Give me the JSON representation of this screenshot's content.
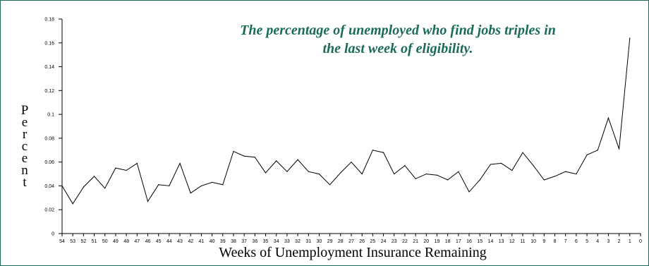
{
  "colors": {
    "frame": "#1a6b5a",
    "annotation": "#1a6b5a",
    "line": "#000000"
  },
  "annotation": {
    "line1": "The percentage of unemployed who find jobs triples in",
    "line2": "the last week of eligibility."
  },
  "chart_data": {
    "type": "line",
    "title": "",
    "xlabel": "Weeks of Unemployment Insurance Remaining",
    "ylabel": "Percent",
    "xlim": [
      54,
      0
    ],
    "x_reversed": true,
    "ylim": [
      0,
      0.18
    ],
    "yticks": [
      0,
      0.02,
      0.04,
      0.06,
      0.08,
      0.1,
      0.12,
      0.14,
      0.16,
      0.18
    ],
    "ytick_labels": [
      "0",
      "0.02",
      "0.04",
      "0.06",
      "0.08",
      "0.1",
      "0.12",
      "0.14",
      "0.16",
      "0.18"
    ],
    "xticks": [
      54,
      53,
      52,
      51,
      50,
      49,
      48,
      47,
      46,
      45,
      44,
      43,
      42,
      41,
      40,
      39,
      38,
      37,
      36,
      35,
      34,
      33,
      32,
      31,
      30,
      29,
      28,
      27,
      26,
      25,
      24,
      23,
      22,
      21,
      20,
      19,
      18,
      17,
      16,
      15,
      14,
      13,
      12,
      11,
      10,
      9,
      8,
      7,
      6,
      5,
      4,
      3,
      2,
      1,
      0
    ],
    "grid": false,
    "series": [
      {
        "x": [
          54,
          53,
          52,
          51,
          50,
          49,
          48,
          47,
          46,
          45,
          44,
          43,
          42,
          41,
          40,
          39,
          38,
          37,
          36,
          35,
          34,
          33,
          32,
          31,
          30,
          29,
          28,
          27,
          26,
          25,
          24,
          23,
          22,
          21,
          20,
          19,
          18,
          17,
          16,
          15,
          14,
          13,
          12,
          11,
          10,
          9,
          8,
          7,
          6,
          5,
          4,
          3,
          2,
          1
        ],
        "values": [
          0.04,
          0.025,
          0.039,
          0.048,
          0.038,
          0.055,
          0.053,
          0.059,
          0.027,
          0.041,
          0.04,
          0.059,
          0.034,
          0.04,
          0.043,
          0.041,
          0.069,
          0.065,
          0.064,
          0.051,
          0.061,
          0.052,
          0.062,
          0.052,
          0.05,
          0.041,
          0.051,
          0.06,
          0.05,
          0.07,
          0.068,
          0.05,
          0.057,
          0.046,
          0.05,
          0.049,
          0.045,
          0.052,
          0.035,
          0.045,
          0.058,
          0.059,
          0.053,
          0.068,
          0.057,
          0.045,
          0.048,
          0.052,
          0.05,
          0.066,
          0.07,
          0.097,
          0.071,
          0.164
        ]
      }
    ]
  }
}
